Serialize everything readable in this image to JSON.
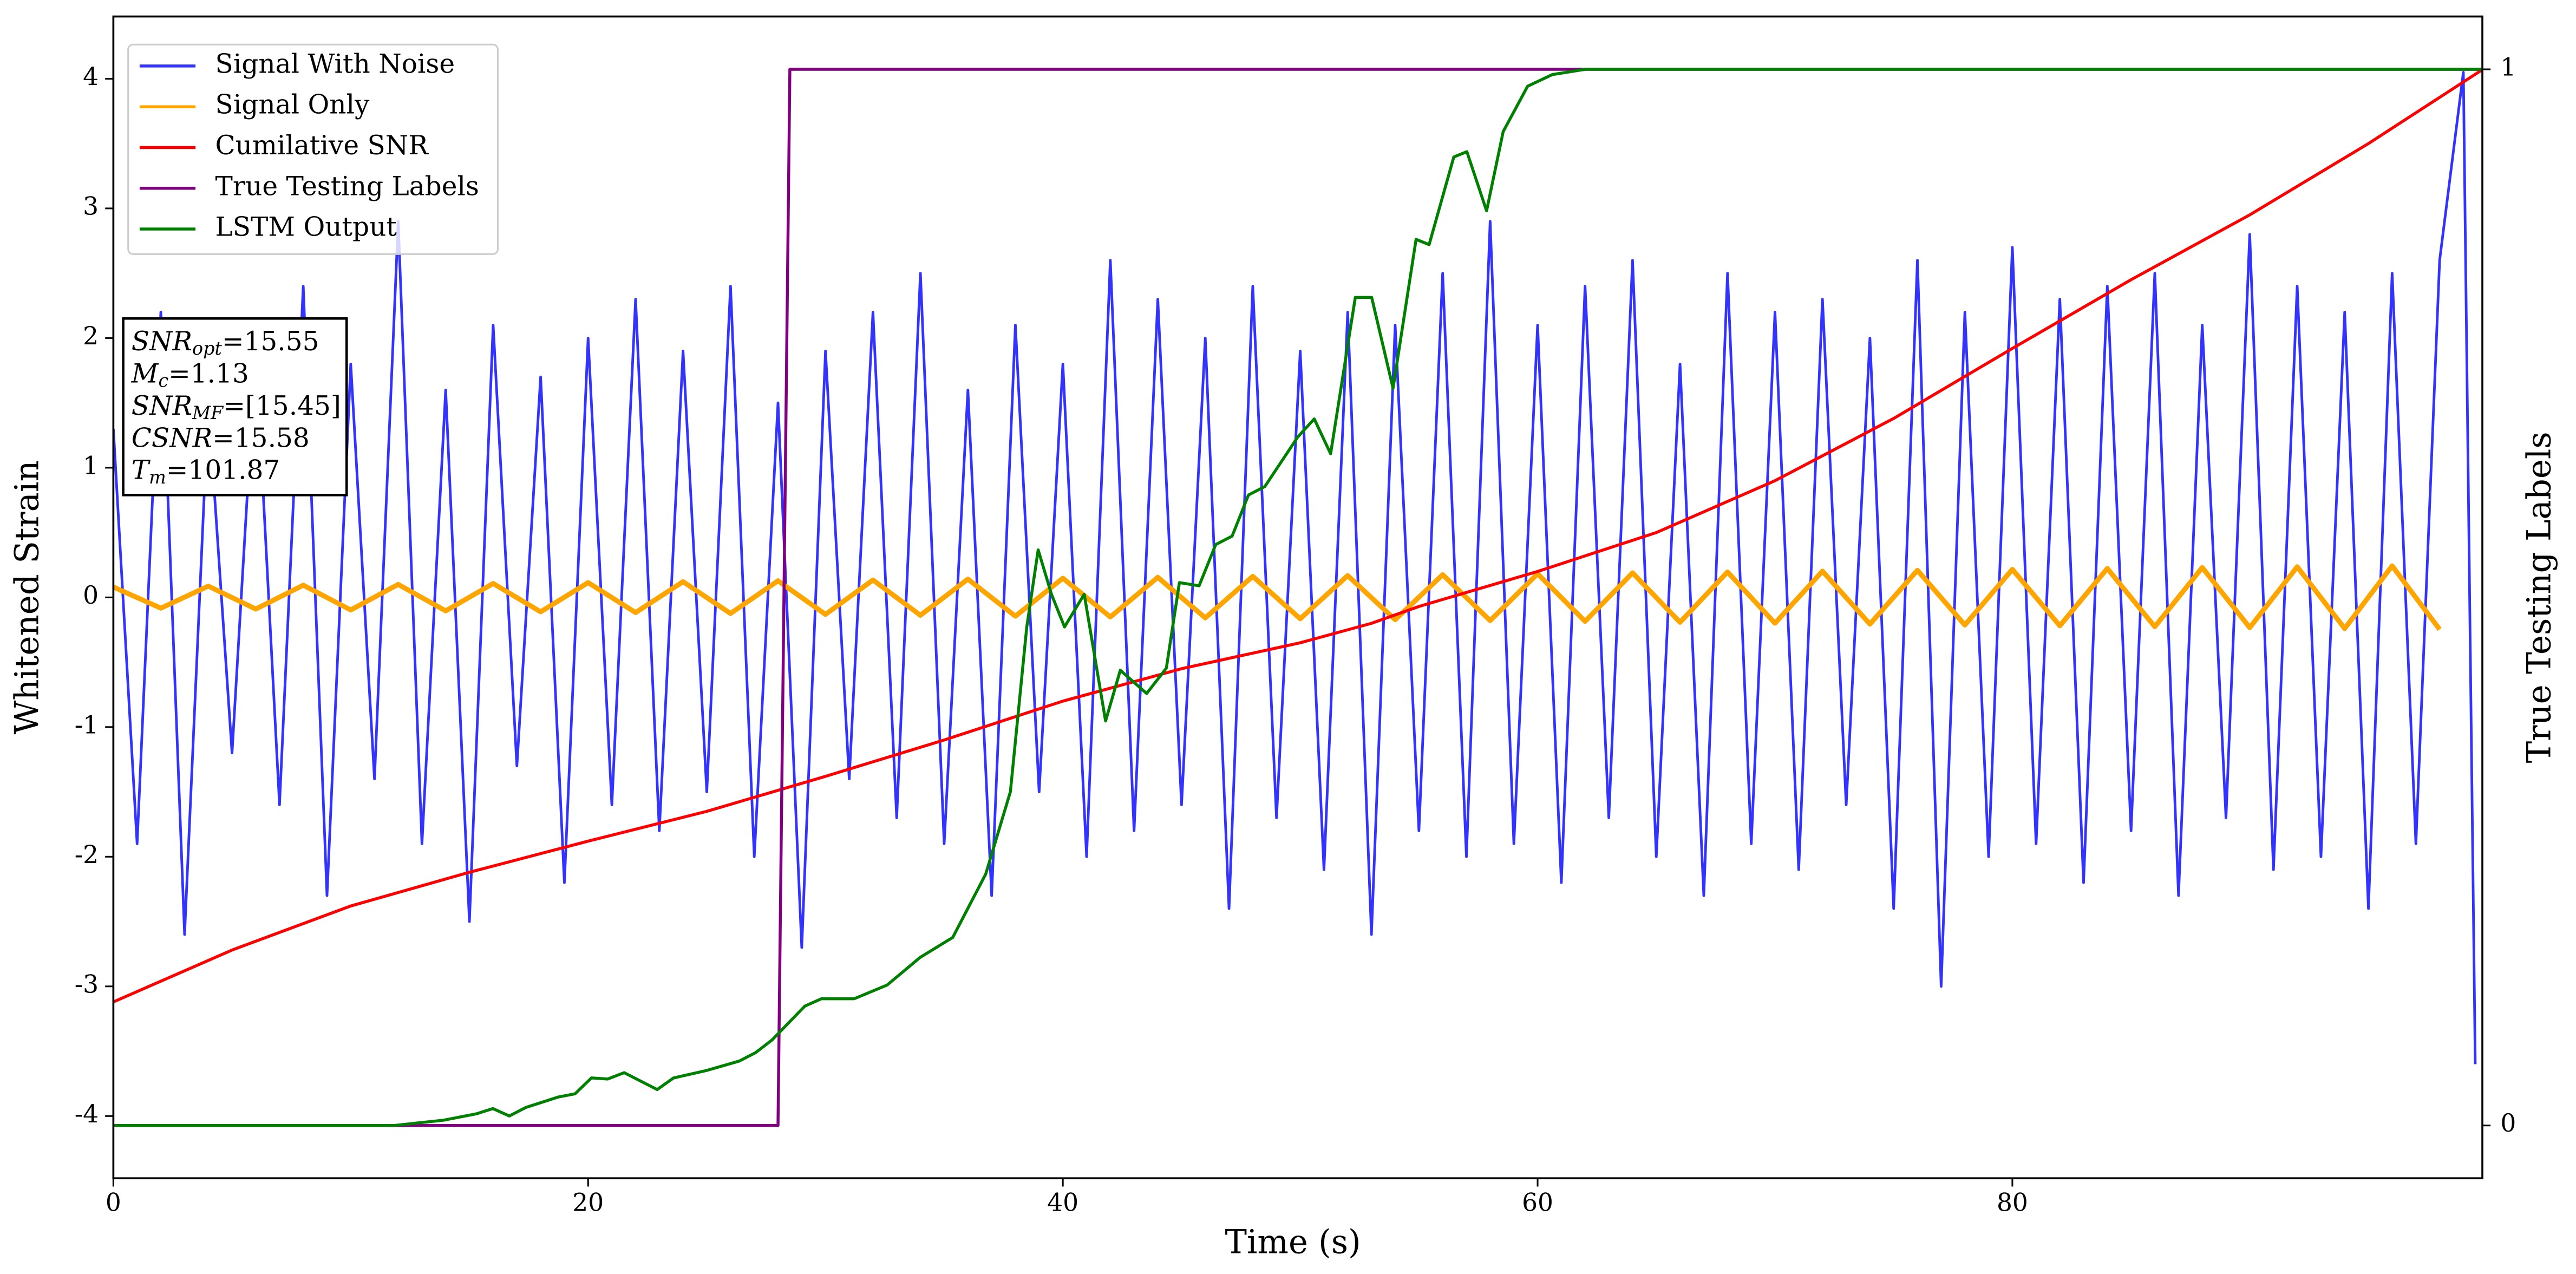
{
  "chart_data": {
    "type": "line",
    "xlabel": "Time (s)",
    "ylabel": "Whitened Strain",
    "y2label": "True Testing Labels",
    "xlim": [
      0,
      99.8
    ],
    "ylim": [
      -4.48,
      4.48
    ],
    "y2lim": [
      -0.05,
      1.05
    ],
    "xticks": [
      0,
      20,
      40,
      60,
      80
    ],
    "yticks": [
      -4,
      -3,
      -2,
      -1,
      0,
      1,
      2,
      3,
      4
    ],
    "y2ticks": [
      0,
      1
    ],
    "legend": "upper left",
    "series": [
      {
        "name": "Signal With Noise",
        "color": "#3333ff",
        "x": [
          0,
          1,
          2,
          3,
          4,
          5,
          6,
          7,
          8,
          9,
          10,
          11,
          12,
          13,
          14,
          15,
          16,
          17,
          18,
          19,
          20,
          21,
          22,
          23,
          24,
          25,
          26,
          27,
          28,
          29,
          30,
          31,
          32,
          33,
          34,
          35,
          36,
          37,
          38,
          39,
          40,
          41,
          42,
          43,
          44,
          45,
          46,
          47,
          48,
          49,
          50,
          51,
          52,
          53,
          54,
          55,
          56,
          57,
          58,
          59,
          60,
          61,
          62,
          63,
          64,
          65,
          66,
          67,
          68,
          69,
          70,
          71,
          72,
          73,
          74,
          75,
          76,
          77,
          78,
          79,
          80,
          81,
          82,
          83,
          84,
          85,
          86,
          87,
          88,
          89,
          90,
          91,
          92,
          93,
          94,
          95,
          96,
          97,
          98,
          99,
          99.5
        ],
        "values": [
          1.3,
          -1.9,
          2.2,
          -2.6,
          1.5,
          -1.2,
          1.9,
          -1.6,
          2.4,
          -2.3,
          1.8,
          -1.4,
          2.9,
          -1.9,
          1.6,
          -2.5,
          2.1,
          -1.3,
          1.7,
          -2.2,
          2.0,
          -1.6,
          2.3,
          -1.8,
          1.9,
          -1.5,
          2.4,
          -2.0,
          1.5,
          -2.7,
          1.9,
          -1.4,
          2.2,
          -1.7,
          2.5,
          -1.9,
          1.6,
          -2.3,
          2.1,
          -1.5,
          1.8,
          -2.0,
          2.6,
          -1.8,
          2.3,
          -1.6,
          2.0,
          -2.4,
          2.4,
          -1.7,
          1.9,
          -2.1,
          2.2,
          -2.6,
          2.1,
          -1.8,
          2.5,
          -2.0,
          2.9,
          -1.9,
          2.1,
          -2.2,
          2.4,
          -1.7,
          2.6,
          -2.0,
          1.8,
          -2.3,
          2.5,
          -1.9,
          2.2,
          -2.1,
          2.3,
          -1.6,
          2.0,
          -2.4,
          2.6,
          -3.0,
          2.2,
          -2.0,
          2.7,
          -1.9,
          2.3,
          -2.2,
          2.4,
          -1.8,
          2.5,
          -2.3,
          2.1,
          -1.7,
          2.8,
          -2.1,
          2.4,
          -2.0,
          2.2,
          -2.4,
          2.5,
          -1.9,
          2.6,
          4.05,
          -3.6
        ]
      },
      {
        "name": "Signal Only",
        "color": "orange",
        "x": [
          0,
          2,
          4,
          6,
          8,
          10,
          12,
          14,
          16,
          18,
          20,
          22,
          24,
          26,
          28,
          30,
          32,
          34,
          36,
          38,
          40,
          42,
          44,
          46,
          48,
          50,
          52,
          54,
          56,
          58,
          60,
          62,
          64,
          66,
          68,
          70,
          72,
          74,
          76,
          78,
          80,
          82,
          84,
          86,
          88,
          90,
          92,
          94,
          96,
          98
        ],
        "values": [
          0.08,
          -0.083,
          0.087,
          -0.09,
          0.094,
          -0.097,
          0.1,
          -0.104,
          0.107,
          -0.111,
          0.114,
          -0.117,
          0.121,
          -0.124,
          0.128,
          -0.131,
          0.134,
          -0.138,
          0.141,
          -0.145,
          0.148,
          -0.151,
          0.155,
          -0.158,
          0.162,
          -0.165,
          0.168,
          -0.172,
          0.175,
          -0.179,
          0.182,
          -0.185,
          0.189,
          -0.192,
          0.196,
          -0.199,
          0.202,
          -0.206,
          0.209,
          -0.213,
          0.216,
          -0.219,
          0.223,
          -0.226,
          0.23,
          -0.233,
          0.236,
          -0.24,
          0.243,
          -0.247
        ]
      },
      {
        "name": "Cumilative SNR",
        "color": "red",
        "x": [
          0,
          5,
          10,
          15,
          20,
          25,
          30,
          35,
          40,
          45,
          50,
          53,
          55,
          60,
          65,
          70,
          75,
          80,
          85,
          90,
          95,
          99.8
        ],
        "values": [
          -3.12,
          -2.72,
          -2.38,
          -2.12,
          -1.88,
          -1.65,
          -1.38,
          -1.1,
          -0.8,
          -0.55,
          -0.35,
          -0.2,
          -0.07,
          0.2,
          0.5,
          0.9,
          1.38,
          1.92,
          2.45,
          2.95,
          3.5,
          4.07
        ]
      },
      {
        "name": "True Testing Labels",
        "color": "purple",
        "axis": "y2",
        "x": [
          0,
          28.0,
          28.5,
          99.8
        ],
        "values": [
          0,
          0,
          1,
          1
        ]
      },
      {
        "name": "LSTM Output",
        "color": "green",
        "axis": "y2",
        "x": [
          0,
          11.83,
          13.91,
          15.29,
          15.99,
          16.68,
          17.37,
          18.75,
          19.45,
          20.14,
          20.83,
          21.52,
          22.91,
          23.6,
          24.98,
          26.37,
          27.06,
          27.75,
          29.13,
          29.83,
          31.21,
          32.6,
          33.98,
          35.36,
          36.75,
          37.79,
          38.48,
          38.96,
          39.52,
          40.07,
          40.9,
          41.8,
          42.42,
          43.53,
          44.36,
          44.91,
          45.74,
          46.44,
          47.13,
          47.82,
          48.51,
          49.9,
          50.59,
          51.28,
          52.32,
          53.01,
          53.91,
          54.88,
          55.43,
          56.47,
          57.02,
          57.85,
          58.55,
          59.58,
          60.62,
          62.01,
          73.43,
          99.79
        ],
        "values": [
          0,
          0,
          0.005,
          0.011,
          0.016,
          0.009,
          0.017,
          0.027,
          0.03,
          0.045,
          0.044,
          0.05,
          0.034,
          0.045,
          0.052,
          0.061,
          0.069,
          0.081,
          0.113,
          0.12,
          0.12,
          0.133,
          0.159,
          0.178,
          0.238,
          0.316,
          0.472,
          0.545,
          0.503,
          0.472,
          0.503,
          0.383,
          0.431,
          0.409,
          0.433,
          0.514,
          0.511,
          0.55,
          0.558,
          0.597,
          0.605,
          0.652,
          0.669,
          0.636,
          0.784,
          0.784,
          0.698,
          0.839,
          0.834,
          0.917,
          0.922,
          0.866,
          0.941,
          0.984,
          0.995,
          1,
          1,
          1
        ]
      }
    ],
    "annotations": [
      {
        "main": "SNR",
        "sub": "opt",
        "rest": "=15.55"
      },
      {
        "main": "M",
        "sub": "c",
        "rest": "=1.13"
      },
      {
        "main": "SNR",
        "sub": "MF",
        "rest": "=[15.45]"
      },
      {
        "main": "CSNR",
        "rest": "=15.58"
      },
      {
        "main": "T",
        "sub": "m",
        "rest": "=101.87"
      }
    ]
  }
}
